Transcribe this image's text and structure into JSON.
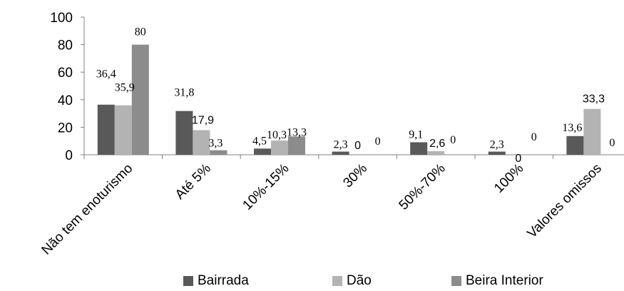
{
  "chart_data": {
    "type": "bar",
    "categories": [
      "Não tem enoturismo",
      "Até 5%",
      "10%-15%",
      "30%",
      "50%-70%",
      "100%",
      "Valores omissos"
    ],
    "series": [
      {
        "name": "Bairrada",
        "color": "#595959",
        "values": [
          36.4,
          31.8,
          4.5,
          2.3,
          9.1,
          2.3,
          13.6
        ],
        "labels": [
          "36,4",
          "31,8",
          "4,5",
          "2,3",
          "9,1",
          "2,3",
          "13,6"
        ]
      },
      {
        "name": "Dão",
        "color": "#b3b3b3",
        "values": [
          35.9,
          17.9,
          10.3,
          0,
          2.6,
          0,
          33.3
        ],
        "labels": [
          "35,9",
          "17,9",
          "10,3",
          "0",
          "2,6",
          "0",
          "33,3"
        ]
      },
      {
        "name": "Beira Interior",
        "color": "#8c8c8c",
        "values": [
          80,
          3.3,
          13.3,
          0,
          0,
          0,
          0
        ],
        "labels": [
          "80",
          "3,3",
          "13,3",
          "0",
          "0",
          "0",
          "0"
        ]
      }
    ],
    "yticks": [
      "0",
      "20",
      "40",
      "60",
      "80",
      "100"
    ],
    "ylim": [
      0,
      100
    ],
    "xlabel": "",
    "ylabel": "",
    "title": "",
    "grid": false,
    "legend_position": "bottom"
  }
}
